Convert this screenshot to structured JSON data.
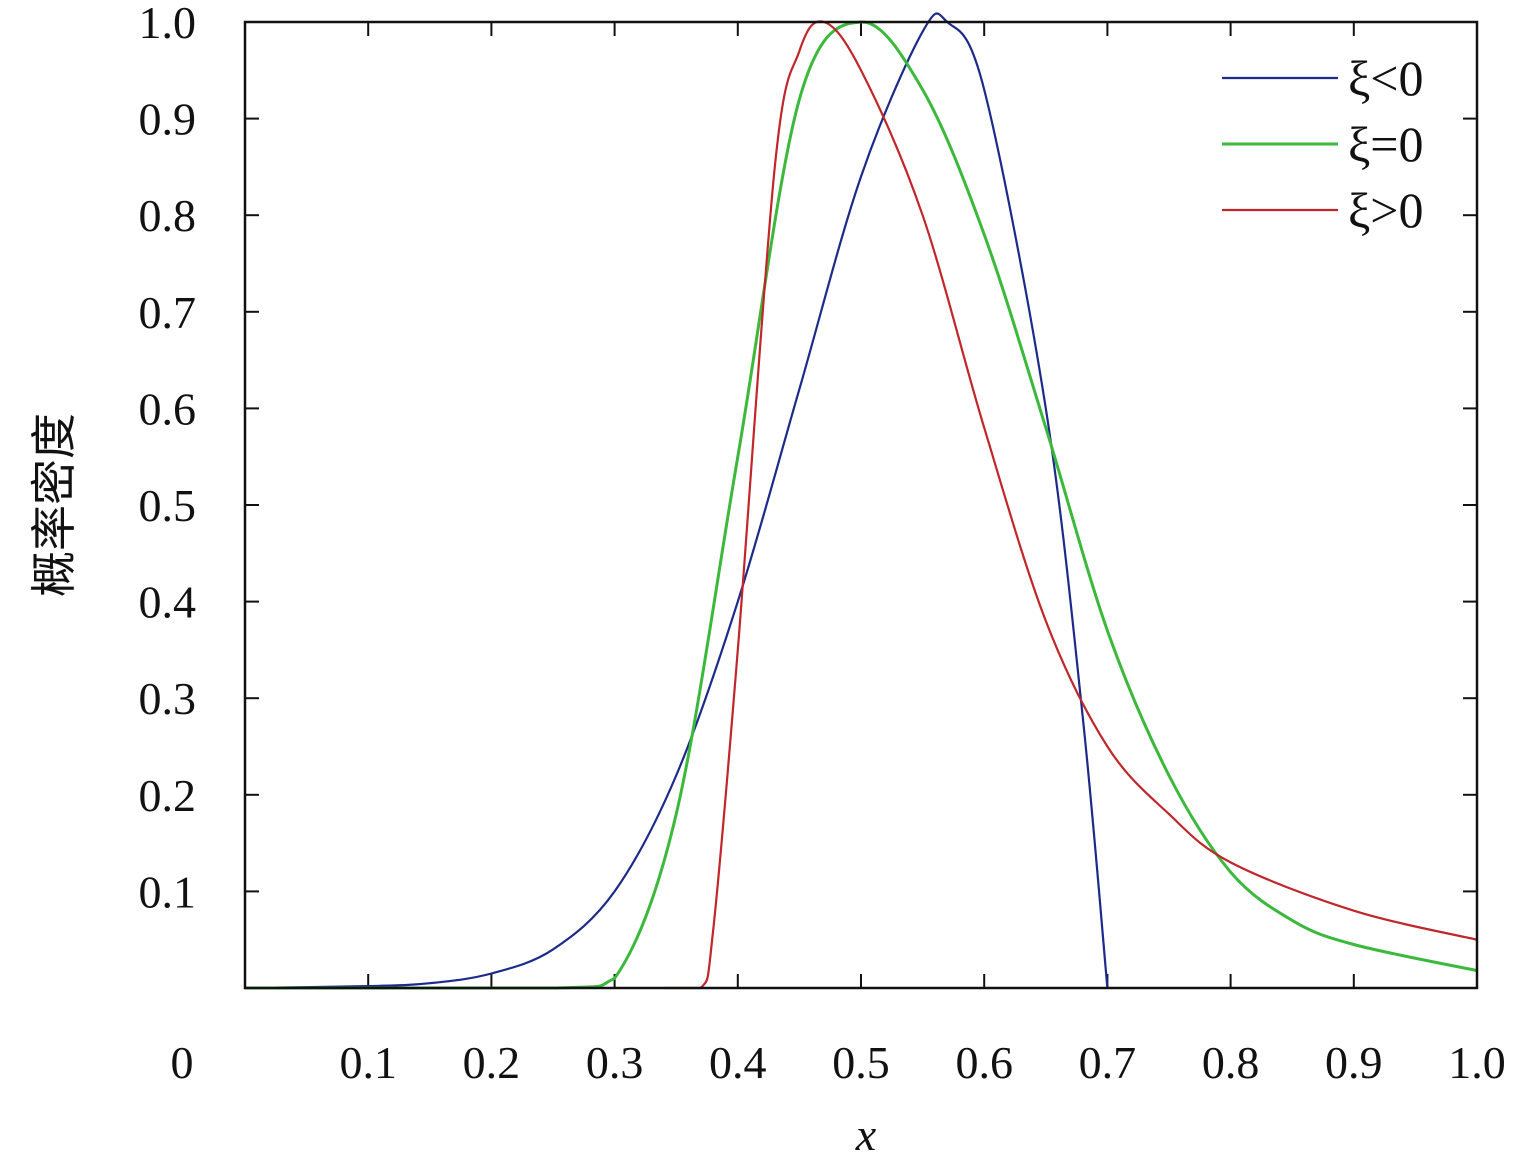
{
  "chart_data": {
    "type": "line",
    "title": "",
    "xlabel": "x",
    "ylabel": "概率密度",
    "xlim": [
      0,
      1
    ],
    "ylim": [
      0,
      1
    ],
    "grid": false,
    "legend_position": "top-right",
    "x_ticks": [
      "0",
      "0.1",
      "0.2",
      "0.3",
      "0.4",
      "0.5",
      "0.6",
      "0.7",
      "0.8",
      "0.9",
      "1.0"
    ],
    "y_ticks": [
      "0.1",
      "0.2",
      "0.3",
      "0.4",
      "0.5",
      "0.6",
      "0.7",
      "0.8",
      "0.9",
      "1.0"
    ],
    "series": [
      {
        "name": "ξ<0",
        "color": "#1c2a8a",
        "x": [
          0,
          0.1,
          0.15,
          0.2,
          0.25,
          0.3,
          0.35,
          0.4,
          0.45,
          0.5,
          0.55,
          0.57,
          0.6,
          0.65,
          0.68,
          0.7
        ],
        "y": [
          0,
          0.002,
          0.005,
          0.015,
          0.04,
          0.1,
          0.22,
          0.4,
          0.62,
          0.84,
          0.99,
          1.0,
          0.93,
          0.6,
          0.28,
          0.0
        ]
      },
      {
        "name": "ξ=0",
        "color": "#3cb83c",
        "x": [
          0,
          0.25,
          0.3,
          0.35,
          0.4,
          0.45,
          0.5,
          0.55,
          0.6,
          0.65,
          0.7,
          0.75,
          0.8,
          0.85,
          0.9,
          1.0
        ],
        "y": [
          0,
          0.0,
          0.01,
          0.18,
          0.55,
          0.92,
          1.0,
          0.93,
          0.78,
          0.58,
          0.37,
          0.22,
          0.12,
          0.07,
          0.045,
          0.018
        ]
      },
      {
        "name": "ξ>0",
        "color": "#c0262a",
        "x": [
          0.34,
          0.37,
          0.38,
          0.4,
          0.43,
          0.45,
          0.47,
          0.5,
          0.55,
          0.6,
          0.65,
          0.7,
          0.75,
          0.8,
          0.9,
          1.0
        ],
        "y": [
          0,
          0.0,
          0.06,
          0.35,
          0.85,
          0.97,
          1.0,
          0.95,
          0.8,
          0.58,
          0.38,
          0.25,
          0.18,
          0.13,
          0.08,
          0.05
        ]
      }
    ]
  }
}
